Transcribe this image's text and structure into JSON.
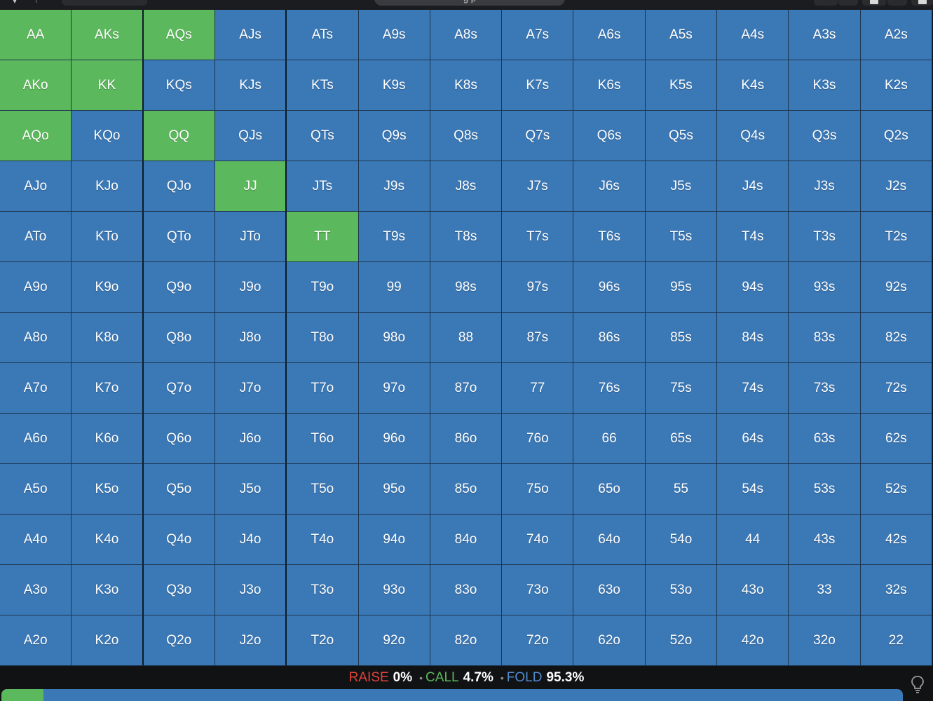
{
  "app": {
    "search_text": "g p"
  },
  "colors": {
    "call": "#5cb85c",
    "fold": "#3b78b6",
    "raise": "#e0453c"
  },
  "grid": {
    "rows": [
      [
        "AA",
        "AKs",
        "AQs",
        "AJs",
        "ATs",
        "A9s",
        "A8s",
        "A7s",
        "A6s",
        "A5s",
        "A4s",
        "A3s",
        "A2s"
      ],
      [
        "AKo",
        "KK",
        "KQs",
        "KJs",
        "KTs",
        "K9s",
        "K8s",
        "K7s",
        "K6s",
        "K5s",
        "K4s",
        "K3s",
        "K2s"
      ],
      [
        "AQo",
        "KQo",
        "QQ",
        "QJs",
        "QTs",
        "Q9s",
        "Q8s",
        "Q7s",
        "Q6s",
        "Q5s",
        "Q4s",
        "Q3s",
        "Q2s"
      ],
      [
        "AJo",
        "KJo",
        "QJo",
        "JJ",
        "JTs",
        "J9s",
        "J8s",
        "J7s",
        "J6s",
        "J5s",
        "J4s",
        "J3s",
        "J2s"
      ],
      [
        "ATo",
        "KTo",
        "QTo",
        "JTo",
        "TT",
        "T9s",
        "T8s",
        "T7s",
        "T6s",
        "T5s",
        "T4s",
        "T3s",
        "T2s"
      ],
      [
        "A9o",
        "K9o",
        "Q9o",
        "J9o",
        "T9o",
        "99",
        "98s",
        "97s",
        "96s",
        "95s",
        "94s",
        "93s",
        "92s"
      ],
      [
        "A8o",
        "K8o",
        "Q8o",
        "J8o",
        "T8o",
        "98o",
        "88",
        "87s",
        "86s",
        "85s",
        "84s",
        "83s",
        "82s"
      ],
      [
        "A7o",
        "K7o",
        "Q7o",
        "J7o",
        "T7o",
        "97o",
        "87o",
        "77",
        "76s",
        "75s",
        "74s",
        "73s",
        "72s"
      ],
      [
        "A6o",
        "K6o",
        "Q6o",
        "J6o",
        "T6o",
        "96o",
        "86o",
        "76o",
        "66",
        "65s",
        "64s",
        "63s",
        "62s"
      ],
      [
        "A5o",
        "K5o",
        "Q5o",
        "J5o",
        "T5o",
        "95o",
        "85o",
        "75o",
        "65o",
        "55",
        "54s",
        "53s",
        "52s"
      ],
      [
        "A4o",
        "K4o",
        "Q4o",
        "J4o",
        "T4o",
        "94o",
        "84o",
        "74o",
        "64o",
        "54o",
        "44",
        "43s",
        "42s"
      ],
      [
        "A3o",
        "K3o",
        "Q3o",
        "J3o",
        "T3o",
        "93o",
        "83o",
        "73o",
        "63o",
        "53o",
        "43o",
        "33",
        "32s"
      ],
      [
        "A2o",
        "K2o",
        "Q2o",
        "J2o",
        "T2o",
        "92o",
        "82o",
        "72o",
        "62o",
        "52o",
        "42o",
        "32o",
        "22"
      ]
    ],
    "call_hands": [
      "AA",
      "AKs",
      "AQs",
      "AKo",
      "KK",
      "AQo",
      "QQ",
      "JJ",
      "TT"
    ],
    "raise_hands": []
  },
  "stats": {
    "raise_label": "RAISE",
    "raise_value": "0%",
    "call_label": "CALL",
    "call_value": "4.7%",
    "fold_label": "FOLD",
    "fold_value": "95.3%",
    "separator": "•"
  },
  "frequency_bar": {
    "raise_fraction": 0.0,
    "call_fraction": 0.047,
    "fold_fraction": 0.953
  },
  "icons": {
    "top_left": "chevron-down-icon",
    "back": "arrow-left-icon",
    "hint": "lightbulb-icon"
  }
}
